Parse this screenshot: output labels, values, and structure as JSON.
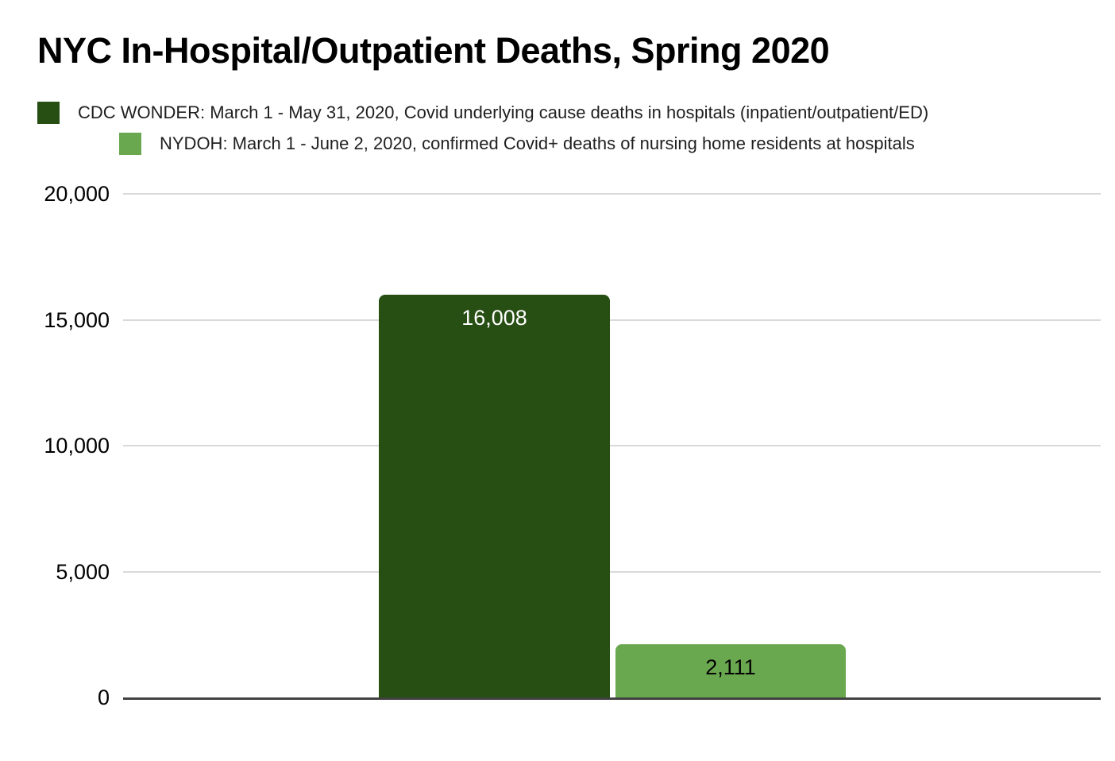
{
  "chart_data": {
    "type": "bar",
    "title": "NYC In-Hospital/Outpatient Deaths, Spring 2020",
    "xlabel": "",
    "ylabel": "",
    "ylim": [
      0,
      20000
    ],
    "grid": true,
    "legend_position": "top-left",
    "gridline_color": "#d9d9d9",
    "axis_color": "#424242",
    "background_color": "#ffffff",
    "yticks": [
      {
        "value": 0,
        "label": "0"
      },
      {
        "value": 5000,
        "label": "5,000"
      },
      {
        "value": 10000,
        "label": "10,000"
      },
      {
        "value": 15000,
        "label": "15,000"
      },
      {
        "value": 20000,
        "label": "20,000"
      }
    ],
    "series": [
      {
        "name": "CDC WONDER: March 1 - May 31, 2020, Covid underlying cause deaths in hospitals (inpatient/outpatient/ED)",
        "value": 16008,
        "value_label": "16,008",
        "color": "#274e13",
        "value_label_color": "#ffffff"
      },
      {
        "name": "NYDOH: March 1 - June 2, 2020, confirmed Covid+ deaths of nursing home residents at hospitals",
        "value": 2111,
        "value_label": "2,111",
        "color": "#6aa84f",
        "value_label_color": "#000000"
      }
    ]
  }
}
